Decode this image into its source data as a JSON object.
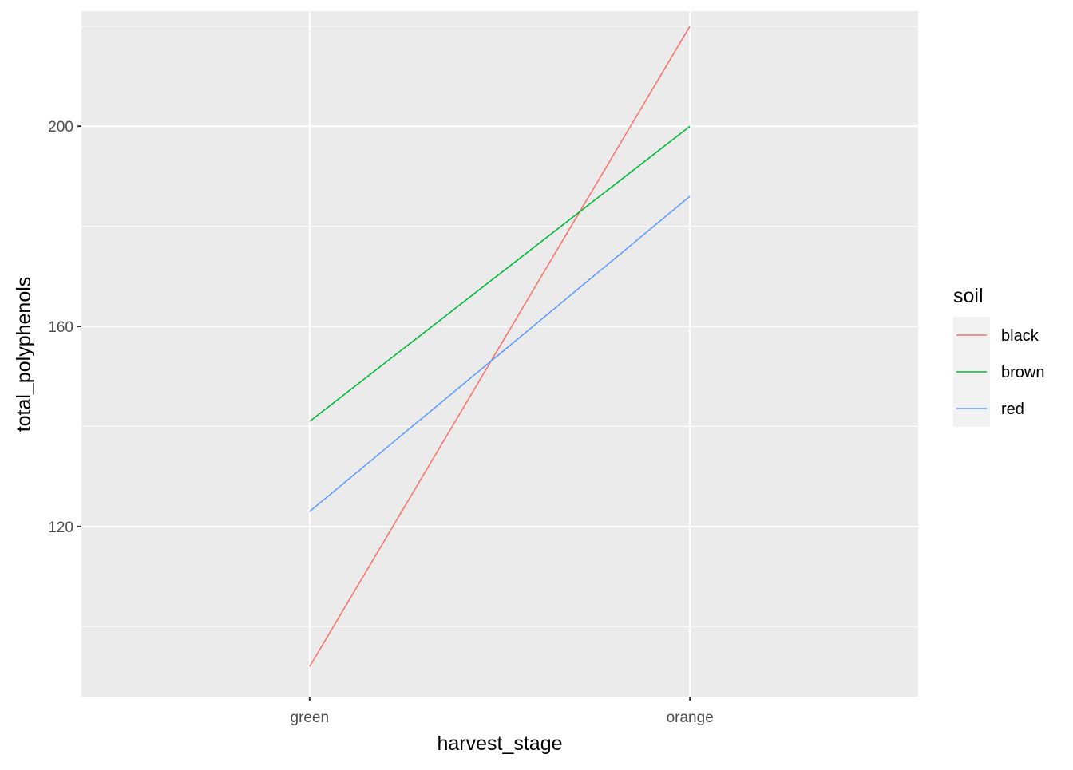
{
  "chart_data": {
    "type": "line",
    "title": "",
    "xlabel": "harvest_stage",
    "ylabel": "total_polyphenols",
    "categories": [
      "green",
      "orange"
    ],
    "ylim": [
      86,
      223
    ],
    "yticks": [
      120,
      160,
      200
    ],
    "grid": true,
    "legend": {
      "title": "soil",
      "position": "right"
    },
    "series": [
      {
        "name": "black",
        "color": "#F8766D",
        "values": [
          92,
          220
        ]
      },
      {
        "name": "brown",
        "color": "#00BA38",
        "values": [
          141,
          200
        ]
      },
      {
        "name": "red",
        "color": "#619CFF",
        "values": [
          123,
          186
        ]
      }
    ]
  },
  "colors": {
    "panel_background": "#EBEBEB",
    "grid_line": "#FFFFFF",
    "tick_mark": "#333333",
    "legend_key_background": "#F2F2F2"
  }
}
